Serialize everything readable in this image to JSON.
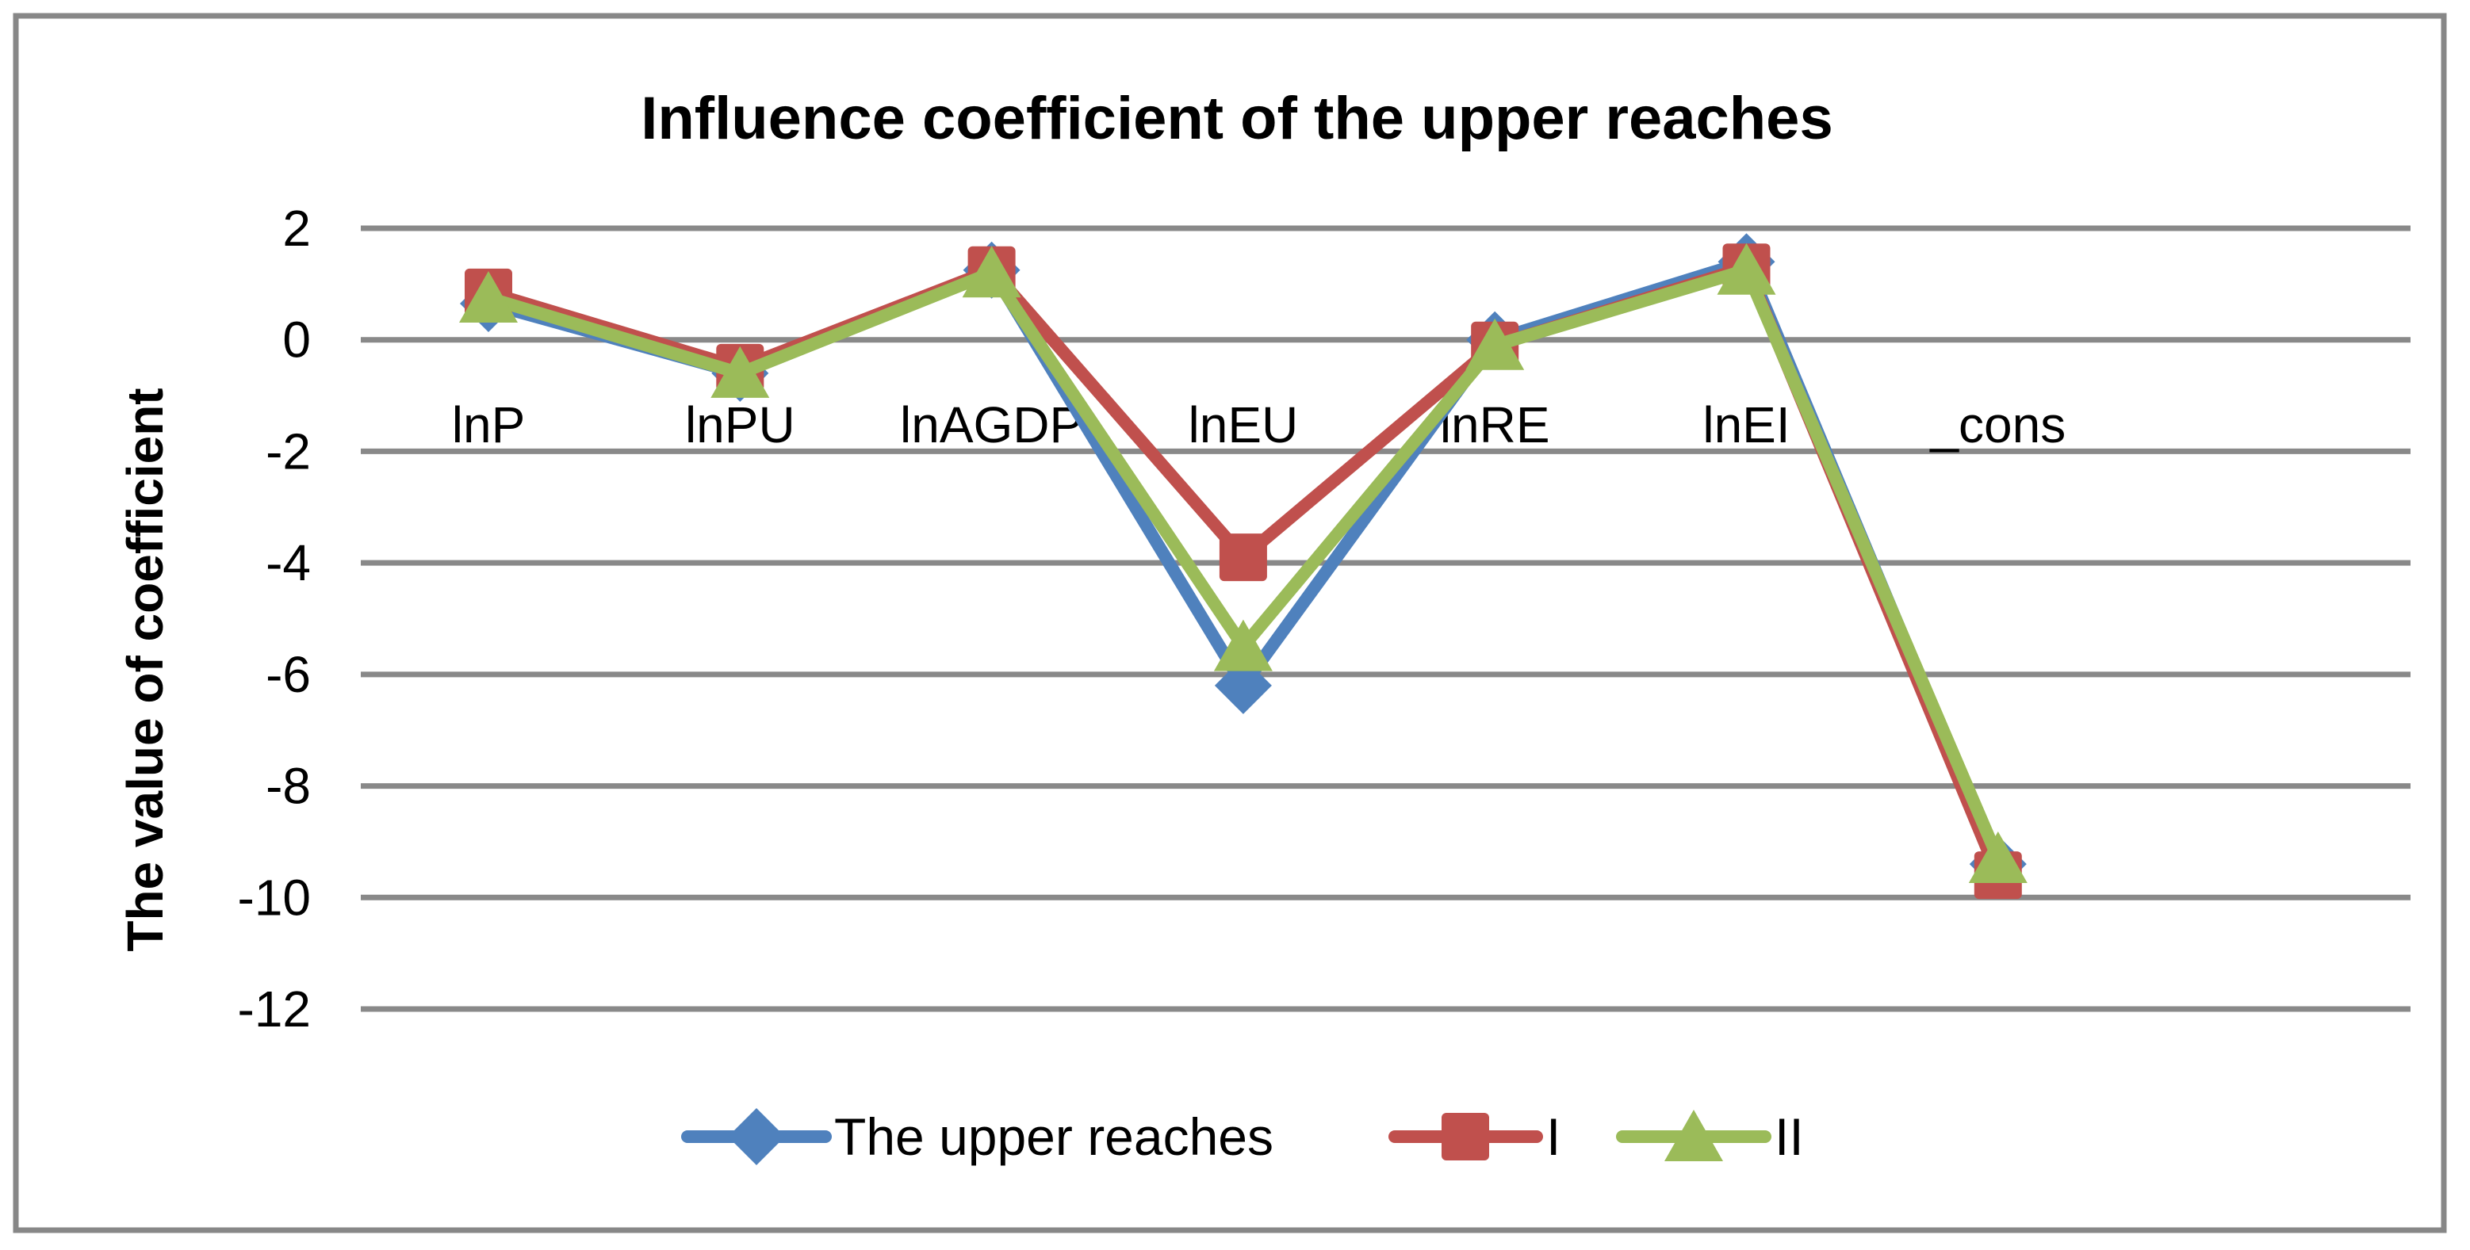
{
  "chart_data": {
    "type": "line",
    "title": "Influence coefficient of the upper reaches",
    "ylabel": "The value of coefficient",
    "xlabel": "",
    "categories": [
      "lnP",
      "lnPU",
      "lnAGDP",
      "lnEU",
      "lnRE",
      "lnEI",
      "_cons"
    ],
    "series": [
      {
        "name": "The upper reaches",
        "color": "#4F81BD",
        "marker": "diamond",
        "values": [
          0.65,
          -0.6,
          1.25,
          -6.2,
          0.0,
          1.4,
          -9.4
        ]
      },
      {
        "name": "I",
        "color": "#C0504D",
        "marker": "square",
        "values": [
          0.85,
          -0.5,
          1.25,
          -3.9,
          -0.1,
          1.3,
          -9.6
        ]
      },
      {
        "name": "II",
        "color": "#9BBB59",
        "marker": "triangle",
        "values": [
          0.75,
          -0.6,
          1.2,
          -5.5,
          -0.1,
          1.25,
          -9.3
        ]
      }
    ],
    "ylim": [
      -12,
      2
    ],
    "yticks": [
      2,
      0,
      -2,
      -4,
      -6,
      -8,
      -10,
      -12
    ],
    "grid": true,
    "legend_position": "bottom",
    "gridline_color": "#898989",
    "border_color": "#878787",
    "background_color": "#FFFFFF",
    "text_color": "#000000"
  }
}
